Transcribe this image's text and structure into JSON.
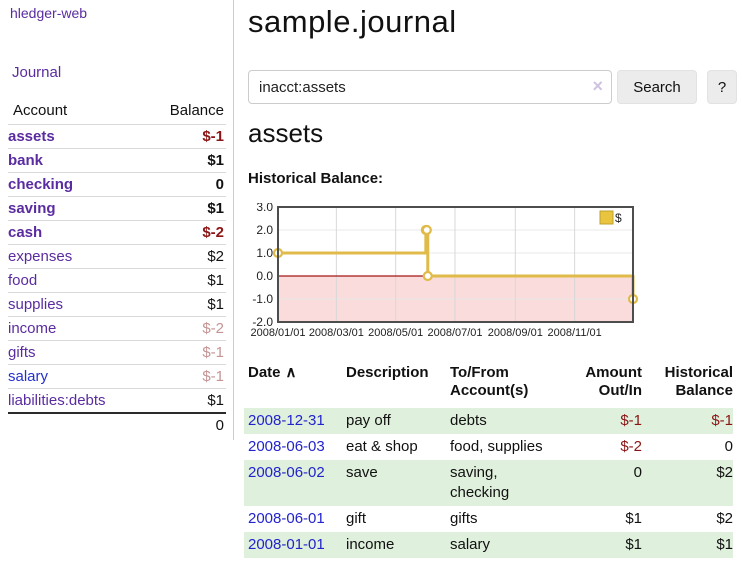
{
  "brand": {
    "label": "hledger-web"
  },
  "nav": {
    "journal_label": "Journal"
  },
  "sidebar": {
    "header": {
      "account": "Account",
      "balance": "Balance"
    },
    "accounts": [
      {
        "name": "assets",
        "indent": 1,
        "balance": "$-1",
        "bold": true,
        "neg": "strong"
      },
      {
        "name": "bank",
        "indent": 2,
        "balance": "$1",
        "bold": true,
        "neg": "none"
      },
      {
        "name": "checking",
        "indent": 3,
        "balance": "0",
        "bold": true,
        "neg": "none"
      },
      {
        "name": "saving",
        "indent": 3,
        "balance": "$1",
        "bold": true,
        "neg": "none"
      },
      {
        "name": "cash",
        "indent": 2,
        "balance": "$-2",
        "bold": true,
        "neg": "strong"
      },
      {
        "name": "expenses",
        "indent": 1,
        "balance": "$2",
        "bold": false,
        "neg": "none"
      },
      {
        "name": "food",
        "indent": 2,
        "balance": "$1",
        "bold": false,
        "neg": "none"
      },
      {
        "name": "supplies",
        "indent": 2,
        "balance": "$1",
        "bold": false,
        "neg": "none"
      },
      {
        "name": "income",
        "indent": 1,
        "balance": "$-2",
        "bold": false,
        "neg": "pale"
      },
      {
        "name": "gifts",
        "indent": 2,
        "balance": "$-1",
        "bold": false,
        "neg": "pale"
      },
      {
        "name": "salary",
        "indent": 2,
        "balance": "$-1",
        "bold": false,
        "neg": "pale",
        "blue": true
      },
      {
        "name": "liabilities:debts",
        "indent": 1,
        "balance": "$1",
        "bold": false,
        "neg": "none"
      }
    ],
    "total": "0"
  },
  "main": {
    "title": "sample.journal",
    "account_title": "assets",
    "chart_heading": "Historical Balance:"
  },
  "search": {
    "value": "inacct:assets",
    "clear_icon": "×",
    "search_button": "Search",
    "help_button": "?"
  },
  "chart_data": {
    "type": "line",
    "title": "Historical Balance",
    "step": true,
    "legend_position": "top-right",
    "ylim": [
      -2,
      3
    ],
    "xlim_days": [
      0,
      365
    ],
    "y_ticks": [
      {
        "label": "3.0",
        "value": 3
      },
      {
        "label": "2.0",
        "value": 2
      },
      {
        "label": "1.0",
        "value": 1
      },
      {
        "label": "0.0",
        "value": 0
      },
      {
        "label": "-1.0",
        "value": -1
      },
      {
        "label": "-2.0",
        "value": -2
      }
    ],
    "x_ticks": [
      {
        "label": "2008/01/01",
        "day": 0
      },
      {
        "label": "2008/03/01",
        "day": 60
      },
      {
        "label": "2008/05/01",
        "day": 121
      },
      {
        "label": "2008/07/01",
        "day": 182
      },
      {
        "label": "2008/09/01",
        "day": 244
      },
      {
        "label": "2008/11/01",
        "day": 305
      }
    ],
    "series": [
      {
        "name": "$",
        "points": [
          {
            "date": "2008-01-01",
            "day": 0,
            "value": 1
          },
          {
            "date": "2008-06-01",
            "day": 152,
            "value": 2
          },
          {
            "date": "2008-06-02",
            "day": 153,
            "value": 2
          },
          {
            "date": "2008-06-03",
            "day": 154,
            "value": 0
          },
          {
            "date": "2008-12-31",
            "day": 365,
            "value": -1
          }
        ]
      }
    ],
    "colors": {
      "line": "#e0bb4a",
      "marker_fill": "#ffffff",
      "legend_fill": "#e9c43f",
      "legend_border": "#bfa02e",
      "negative_region": "#fadcdc",
      "zero_line": "#a31515",
      "grid": "#d8d8d8",
      "hgrid": "#e8e8e8",
      "border": "#4d4d4d"
    }
  },
  "register": {
    "headers": {
      "date": "Date",
      "sort_indicator": "∧",
      "description": "Description",
      "accounts": "To/From Account(s)",
      "amount": "Amount Out/In",
      "balance": "Historical Balance"
    },
    "rows": [
      {
        "date": "2008-12-31",
        "description": "pay off",
        "accounts": "debts",
        "amount": "$-1",
        "amount_negative": true,
        "balance": "$-1",
        "balance_negative": true
      },
      {
        "date": "2008-06-03",
        "description": "eat & shop",
        "accounts": "food, supplies",
        "amount": "$-2",
        "amount_negative": true,
        "balance": "0",
        "balance_negative": false
      },
      {
        "date": "2008-06-02",
        "description": "save",
        "accounts": "saving, checking",
        "amount": "0",
        "amount_negative": false,
        "balance": "$2",
        "balance_negative": false
      },
      {
        "date": "2008-06-01",
        "description": "gift",
        "accounts": "gifts",
        "amount": "$1",
        "amount_negative": false,
        "balance": "$2",
        "balance_negative": false
      },
      {
        "date": "2008-01-01",
        "description": "income",
        "accounts": "salary",
        "amount": "$1",
        "amount_negative": false,
        "balance": "$1",
        "balance_negative": false
      }
    ]
  }
}
